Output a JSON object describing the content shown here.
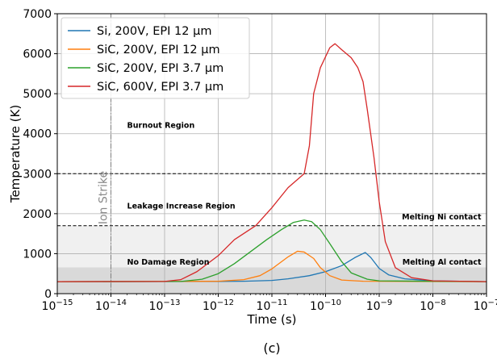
{
  "chart_data": {
    "type": "line",
    "xlabel": "Time (s)",
    "ylabel": "Temperature (K)",
    "caption": "(c)",
    "x_scale": "log",
    "xlim": [
      1e-15,
      1e-07
    ],
    "ylim": [
      0,
      7000
    ],
    "grid": true,
    "legend_position": "top-left",
    "x_ticks": [
      {
        "value": 1e-15,
        "base": "10",
        "exp": "−15"
      },
      {
        "value": 1e-14,
        "base": "10",
        "exp": "−14"
      },
      {
        "value": 1e-13,
        "base": "10",
        "exp": "−13"
      },
      {
        "value": 1e-12,
        "base": "10",
        "exp": "−12"
      },
      {
        "value": 1e-11,
        "base": "10",
        "exp": "−11"
      },
      {
        "value": 1e-10,
        "base": "10",
        "exp": "−10"
      },
      {
        "value": 1e-09,
        "base": "10",
        "exp": "−9"
      },
      {
        "value": 1e-08,
        "base": "10",
        "exp": "−8"
      },
      {
        "value": 1e-07,
        "base": "10",
        "exp": "−7"
      }
    ],
    "y_ticks": [
      0,
      1000,
      2000,
      3000,
      4000,
      5000,
      6000,
      7000
    ],
    "bands": [
      {
        "y0": 0,
        "y1": 660,
        "color": "#d9d9d9"
      },
      {
        "y0": 660,
        "y1": 1700,
        "color": "#f0f0f0"
      }
    ],
    "hlines": [
      {
        "y": 3000,
        "color": "#000000"
      },
      {
        "y": 1700,
        "color": "#000000"
      }
    ],
    "vline": {
      "x": 1e-14,
      "label": "Ion Strike",
      "color": "#7f7f7f"
    },
    "annotations": [
      {
        "text": "Burnout Region",
        "x": 2e-14,
        "y": 4150,
        "align": "start"
      },
      {
        "text": "Leakage Increase Region",
        "x": 2e-14,
        "y": 2130,
        "align": "start"
      },
      {
        "text": "No Damage Region",
        "x": 2e-14,
        "y": 730,
        "align": "start"
      },
      {
        "text": "Melting Ni contact",
        "x": 8e-08,
        "y": 1860,
        "align": "end"
      },
      {
        "text": "Melting Al contact",
        "x": 8e-08,
        "y": 730,
        "align": "end"
      }
    ],
    "series": [
      {
        "name": "Si, 200V, EPI 12 µm",
        "color": "#1f77b4",
        "points": [
          [
            1e-15,
            300
          ],
          [
            1e-12,
            305
          ],
          [
            3e-12,
            310
          ],
          [
            1e-11,
            330
          ],
          [
            2e-11,
            370
          ],
          [
            5e-11,
            450
          ],
          [
            1e-10,
            550
          ],
          [
            2e-10,
            700
          ],
          [
            3.5e-10,
            900
          ],
          [
            5.5e-10,
            1030
          ],
          [
            7e-10,
            900
          ],
          [
            1e-09,
            630
          ],
          [
            1.5e-09,
            470
          ],
          [
            3e-09,
            370
          ],
          [
            1e-08,
            320
          ],
          [
            1e-07,
            300
          ]
        ]
      },
      {
        "name": "SiC, 200V, EPI 12 µm",
        "color": "#ff7f0e",
        "points": [
          [
            1e-15,
            300
          ],
          [
            1e-12,
            310
          ],
          [
            3e-12,
            350
          ],
          [
            6e-12,
            450
          ],
          [
            1e-11,
            620
          ],
          [
            2e-11,
            920
          ],
          [
            3e-11,
            1060
          ],
          [
            4e-11,
            1040
          ],
          [
            6e-11,
            880
          ],
          [
            8e-11,
            650
          ],
          [
            1.2e-10,
            450
          ],
          [
            2e-10,
            340
          ],
          [
            5e-10,
            310
          ],
          [
            1e-07,
            300
          ]
        ]
      },
      {
        "name": "SiC, 200V, EPI 3.7 µm",
        "color": "#2ca02c",
        "points": [
          [
            1e-15,
            300
          ],
          [
            2e-13,
            305
          ],
          [
            5e-13,
            360
          ],
          [
            1e-12,
            500
          ],
          [
            2e-12,
            750
          ],
          [
            4e-12,
            1050
          ],
          [
            8e-12,
            1350
          ],
          [
            1.5e-11,
            1600
          ],
          [
            2.5e-11,
            1780
          ],
          [
            4e-11,
            1840
          ],
          [
            5.5e-11,
            1800
          ],
          [
            8e-11,
            1600
          ],
          [
            1.2e-10,
            1250
          ],
          [
            2e-10,
            800
          ],
          [
            3e-10,
            520
          ],
          [
            6e-10,
            360
          ],
          [
            1e-09,
            320
          ],
          [
            1e-07,
            300
          ]
        ]
      },
      {
        "name": "SiC, 600V, EPI 3.7 µm",
        "color": "#d62728",
        "points": [
          [
            1e-15,
            300
          ],
          [
            1e-13,
            305
          ],
          [
            2e-13,
            350
          ],
          [
            4e-13,
            550
          ],
          [
            1e-12,
            950
          ],
          [
            2e-12,
            1350
          ],
          [
            5e-12,
            1700
          ],
          [
            1e-11,
            2150
          ],
          [
            2e-11,
            2650
          ],
          [
            4e-11,
            3000
          ],
          [
            5e-11,
            3700
          ],
          [
            6e-11,
            5000
          ],
          [
            8e-11,
            5650
          ],
          [
            1.2e-10,
            6150
          ],
          [
            1.5e-10,
            6250
          ],
          [
            2e-10,
            6100
          ],
          [
            3e-10,
            5900
          ],
          [
            4e-10,
            5650
          ],
          [
            5e-10,
            5300
          ],
          [
            6e-10,
            4600
          ],
          [
            8e-10,
            3400
          ],
          [
            1e-09,
            2300
          ],
          [
            1.3e-09,
            1300
          ],
          [
            2e-09,
            650
          ],
          [
            4e-09,
            400
          ],
          [
            1e-08,
            320
          ],
          [
            1e-07,
            300
          ]
        ]
      }
    ]
  }
}
